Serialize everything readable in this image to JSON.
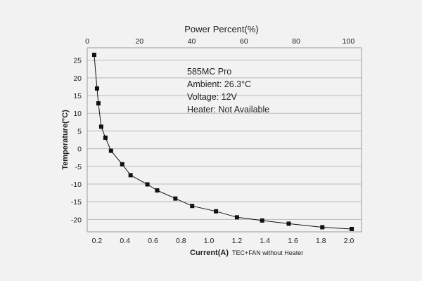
{
  "chart_data": {
    "type": "line",
    "annotations": [
      "585MC Pro",
      "Ambient: 26.3°C",
      "Voltage: 12V",
      "Heater: Not Available"
    ],
    "xlabel": "Current(A)",
    "xlabel_note": "TEC+FAN without Heater",
    "ylabel": "Temperature(°C)",
    "x2label": "Power Percent(%)",
    "xlim": [
      0.13,
      2.09
    ],
    "ylim": [
      -23.5,
      28.5
    ],
    "x2lim": [
      0,
      105
    ],
    "x_ticks": [
      0.2,
      0.4,
      0.6,
      0.8,
      1.0,
      1.2,
      1.4,
      1.6,
      1.8,
      2.0
    ],
    "x_tick_labels": [
      "0.2",
      "0.4",
      "0.6",
      "0.8",
      "1.0",
      "1.2",
      "1.4",
      "1.6",
      "1.8",
      "2.0"
    ],
    "y_ticks": [
      25,
      20,
      15,
      10,
      5,
      0,
      -5,
      -10,
      -15,
      -20
    ],
    "y_tick_labels": [
      "25",
      "20",
      "15",
      "10",
      "5",
      "0",
      "-5",
      "-10",
      "-15",
      "-20"
    ],
    "x2_ticks": [
      0,
      20,
      40,
      60,
      80,
      100
    ],
    "x2_tick_labels": [
      "0",
      "20",
      "40",
      "60",
      "80",
      "100"
    ],
    "grid": true,
    "series": [
      {
        "x": [
          0.18,
          0.2,
          0.21,
          0.23,
          0.26,
          0.3,
          0.38,
          0.44,
          0.56,
          0.63,
          0.76,
          0.88,
          1.05,
          1.2,
          1.38,
          1.57,
          1.81,
          2.02
        ],
        "y": [
          26.5,
          17.0,
          12.8,
          6.2,
          3.1,
          -0.6,
          -4.4,
          -7.5,
          -10.1,
          -11.8,
          -14.1,
          -16.2,
          -17.7,
          -19.4,
          -20.3,
          -21.2,
          -22.2,
          -22.7
        ]
      }
    ],
    "colors": {
      "line": "#111111",
      "grid": "#b9b9b9",
      "background": "#f2f2f2"
    }
  }
}
